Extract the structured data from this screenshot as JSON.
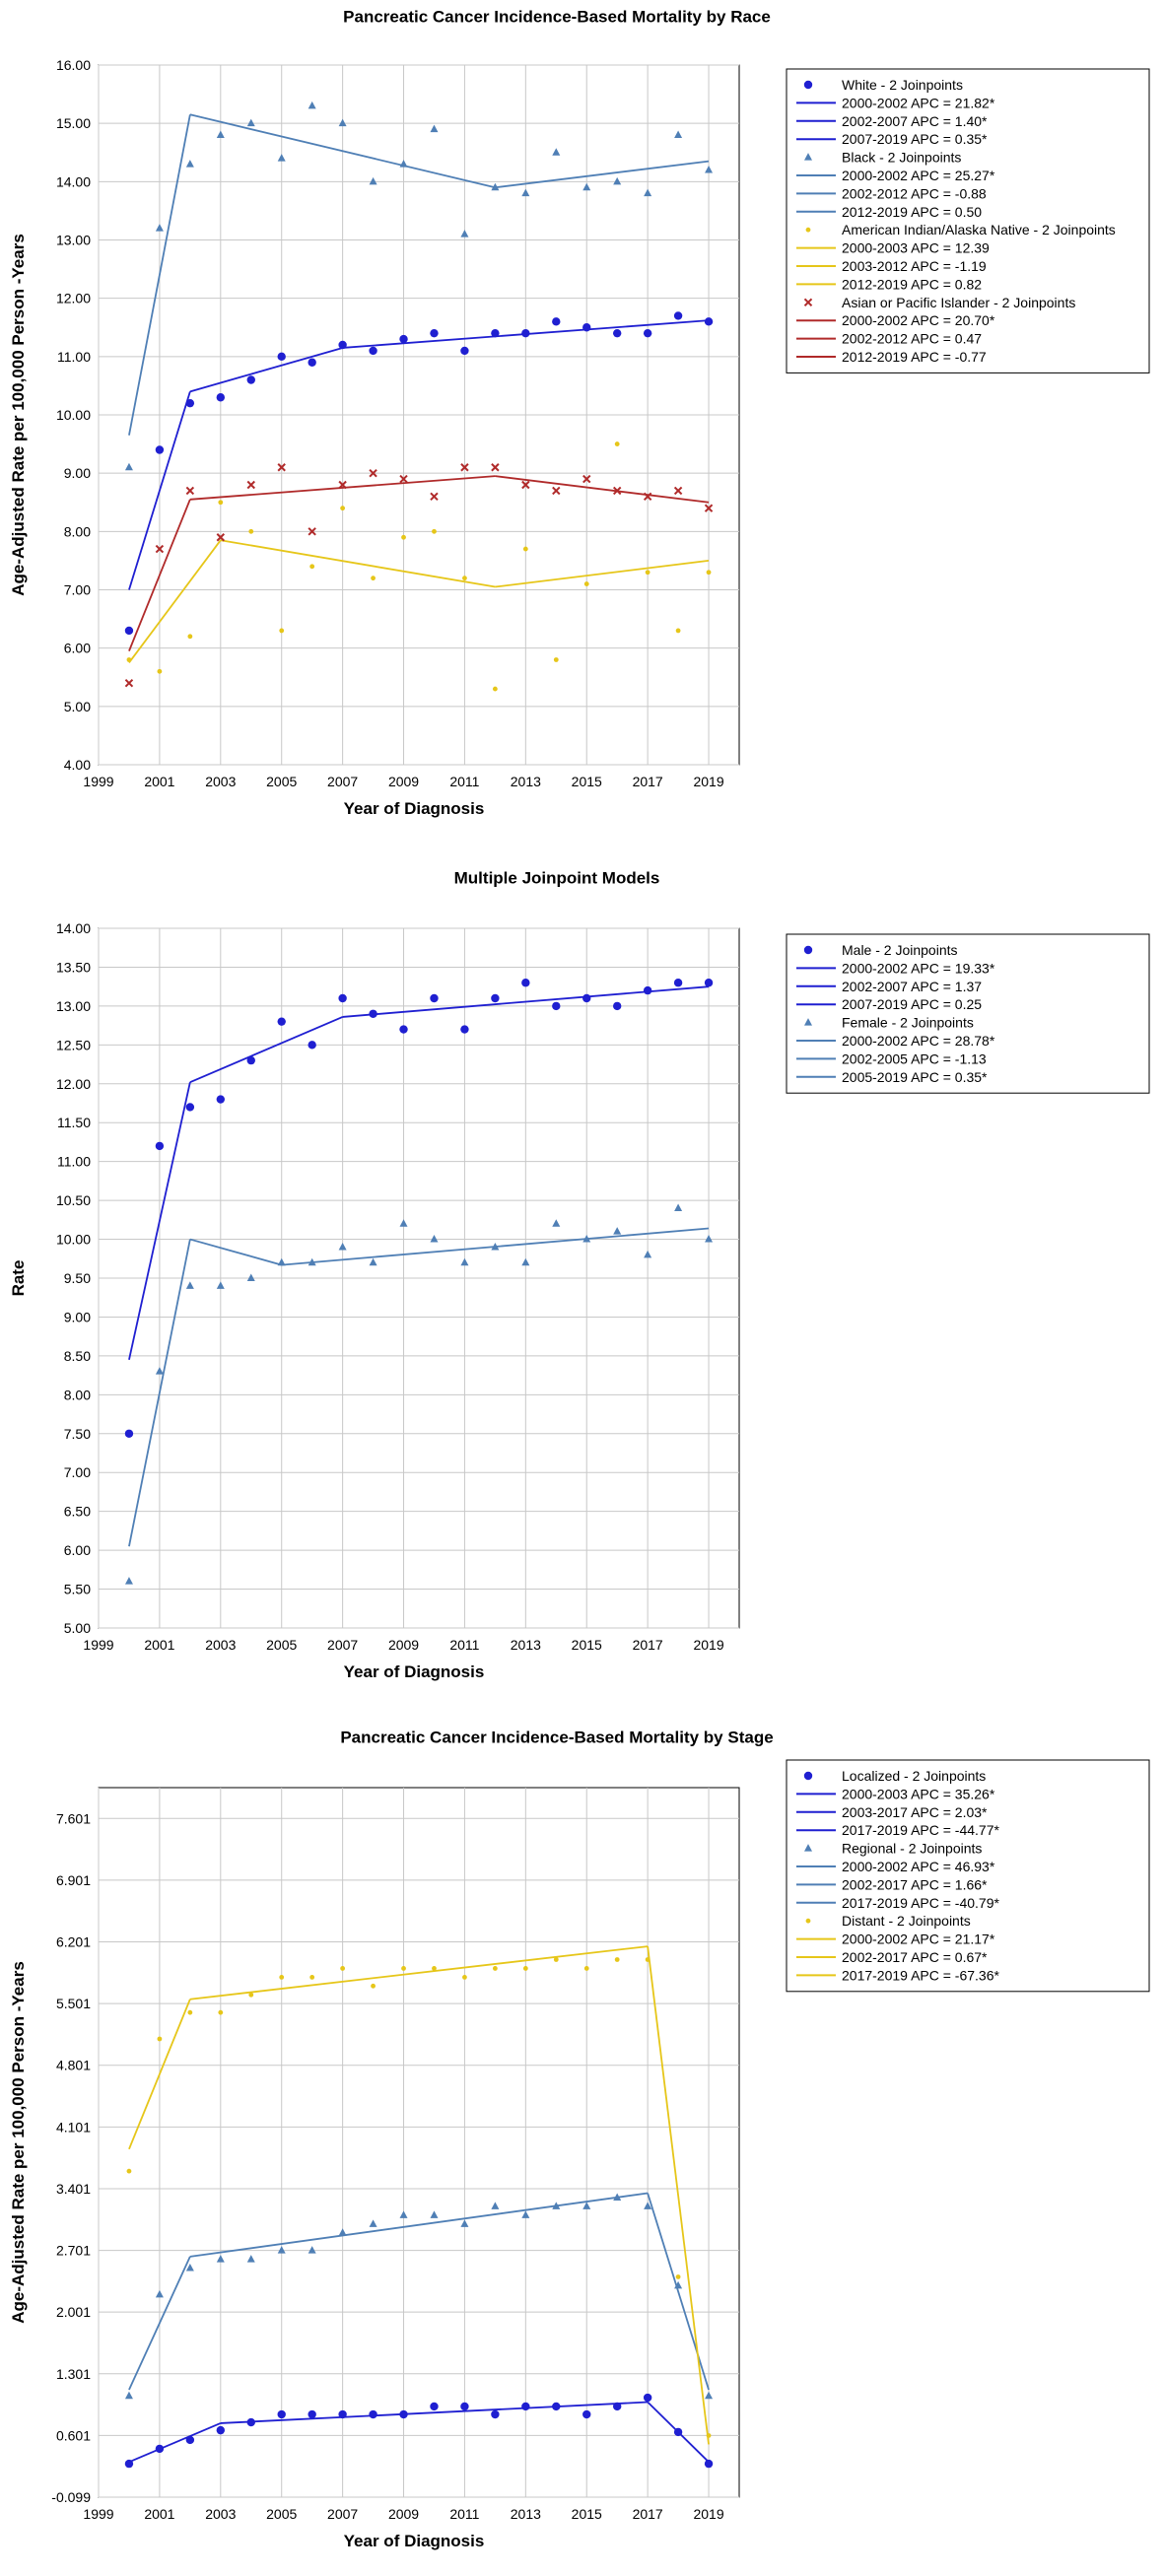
{
  "chart_data": [
    {
      "type": "line",
      "title": "Pancreatic Cancer Incidence-Based Mortality by Race",
      "xlabel": "Year of Diagnosis",
      "ylabel": "Age-Adjusted Rate per 100,000 Person -Years",
      "xlim": [
        1999,
        2020
      ],
      "ylim": [
        4.0,
        16.0
      ],
      "xticks": [
        1999,
        2001,
        2003,
        2005,
        2007,
        2009,
        2011,
        2013,
        2015,
        2017,
        2019
      ],
      "xtick_labels": [
        "1999",
        "2001",
        "2003",
        "2005",
        "2007",
        "2009",
        "2011",
        "2013",
        "2015",
        "2017",
        "2019"
      ],
      "yticks": [
        4.0,
        5.0,
        6.0,
        7.0,
        8.0,
        9.0,
        10.0,
        11.0,
        12.0,
        13.0,
        14.0,
        15.0,
        16.0
      ],
      "ytick_labels": [
        "4.00",
        "5.00",
        "6.00",
        "7.00",
        "8.00",
        "9.00",
        "10.00",
        "11.00",
        "12.00",
        "13.00",
        "14.00",
        "15.00",
        "16.00"
      ],
      "grid": true,
      "legend_position": "right",
      "series": [
        {
          "name": "White - 2 Joinpoints",
          "color": "#1f1fd1",
          "marker": "circle",
          "x": [
            2000,
            2001,
            2002,
            2003,
            2004,
            2005,
            2006,
            2007,
            2008,
            2009,
            2010,
            2011,
            2012,
            2013,
            2014,
            2015,
            2016,
            2017,
            2018,
            2019
          ],
          "y": [
            6.3,
            9.4,
            10.2,
            10.3,
            10.6,
            11.0,
            10.9,
            11.2,
            11.1,
            11.3,
            11.4,
            11.1,
            11.4,
            11.4,
            11.6,
            11.5,
            11.4,
            11.4,
            11.7,
            11.6
          ],
          "segments": [
            {
              "label": "2000-2002 APC = 21.82*",
              "x": [
                2000,
                2002
              ],
              "y": [
                7.0,
                10.4
              ]
            },
            {
              "label": "2002-2007 APC = 1.40*",
              "x": [
                2002,
                2007
              ],
              "y": [
                10.4,
                11.15
              ]
            },
            {
              "label": "2007-2019 APC = 0.35*",
              "x": [
                2007,
                2019
              ],
              "y": [
                11.15,
                11.62
              ]
            }
          ]
        },
        {
          "name": "Black - 2 Joinpoints",
          "color": "#4f7fb5",
          "marker": "triangle",
          "x": [
            2000,
            2001,
            2002,
            2003,
            2004,
            2005,
            2006,
            2007,
            2008,
            2009,
            2010,
            2011,
            2012,
            2013,
            2014,
            2015,
            2016,
            2017,
            2018,
            2019
          ],
          "y": [
            9.1,
            13.2,
            14.3,
            14.8,
            15.0,
            14.4,
            15.3,
            15.0,
            14.0,
            14.3,
            14.9,
            13.1,
            13.9,
            13.8,
            14.5,
            13.9,
            14.0,
            13.8,
            14.8,
            14.2
          ],
          "segments": [
            {
              "label": "2000-2002 APC = 25.27*",
              "x": [
                2000,
                2002
              ],
              "y": [
                9.65,
                15.15
              ]
            },
            {
              "label": "2002-2012 APC = -0.88",
              "x": [
                2002,
                2012
              ],
              "y": [
                15.15,
                13.9
              ]
            },
            {
              "label": "2012-2019 APC = 0.50",
              "x": [
                2012,
                2019
              ],
              "y": [
                13.9,
                14.35
              ]
            }
          ]
        },
        {
          "name": "American Indian/Alaska Native - 2 Joinpoints",
          "color": "#e6c619",
          "marker": "dot",
          "x": [
            2000,
            2001,
            2002,
            2003,
            2004,
            2005,
            2006,
            2007,
            2008,
            2009,
            2010,
            2011,
            2012,
            2013,
            2014,
            2015,
            2016,
            2017,
            2018,
            2019
          ],
          "y": [
            5.8,
            5.6,
            6.2,
            8.5,
            8.0,
            6.3,
            7.4,
            8.4,
            7.2,
            7.9,
            8.0,
            7.2,
            5.3,
            7.7,
            5.8,
            7.1,
            9.5,
            7.3,
            6.3,
            7.3
          ],
          "segments": [
            {
              "label": "2000-2003 APC = 12.39",
              "x": [
                2000,
                2003
              ],
              "y": [
                5.75,
                7.85
              ]
            },
            {
              "label": "2003-2012 APC = -1.19",
              "x": [
                2003,
                2012
              ],
              "y": [
                7.85,
                7.05
              ]
            },
            {
              "label": "2012-2019 APC = 0.82",
              "x": [
                2012,
                2019
              ],
              "y": [
                7.05,
                7.5
              ]
            }
          ]
        },
        {
          "name": "Asian or Pacific Islander - 2 Joinpoints",
          "color": "#b02a2a",
          "marker": "x",
          "x": [
            2000,
            2001,
            2002,
            2003,
            2004,
            2005,
            2006,
            2007,
            2008,
            2009,
            2010,
            2011,
            2012,
            2013,
            2014,
            2015,
            2016,
            2017,
            2018,
            2019
          ],
          "y": [
            5.4,
            7.7,
            8.7,
            7.9,
            8.8,
            9.1,
            8.0,
            8.8,
            9.0,
            8.9,
            8.6,
            9.1,
            9.1,
            8.8,
            8.7,
            8.9,
            8.7,
            8.6,
            8.7,
            8.4
          ],
          "segments": [
            {
              "label": "2000-2002 APC = 20.70*",
              "x": [
                2000,
                2002
              ],
              "y": [
                5.95,
                8.55
              ]
            },
            {
              "label": "2002-2012 APC = 0.47",
              "x": [
                2002,
                2012
              ],
              "y": [
                8.55,
                8.95
              ]
            },
            {
              "label": "2012-2019 APC = -0.77",
              "x": [
                2012,
                2019
              ],
              "y": [
                8.95,
                8.5
              ]
            }
          ]
        }
      ]
    },
    {
      "type": "line",
      "title": "Multiple Joinpoint Models",
      "xlabel": "Year of Diagnosis",
      "ylabel": "Rate",
      "xlim": [
        1999,
        2020
      ],
      "ylim": [
        5.0,
        14.0
      ],
      "xticks": [
        1999,
        2001,
        2003,
        2005,
        2007,
        2009,
        2011,
        2013,
        2015,
        2017,
        2019
      ],
      "xtick_labels": [
        "1999",
        "2001",
        "2003",
        "2005",
        "2007",
        "2009",
        "2011",
        "2013",
        "2015",
        "2017",
        "2019"
      ],
      "yticks": [
        5.0,
        5.5,
        6.0,
        6.5,
        7.0,
        7.5,
        8.0,
        8.5,
        9.0,
        9.5,
        10.0,
        10.5,
        11.0,
        11.5,
        12.0,
        12.5,
        13.0,
        13.5,
        14.0
      ],
      "ytick_labels": [
        "5.00",
        "5.50",
        "6.00",
        "6.50",
        "7.00",
        "7.50",
        "8.00",
        "8.50",
        "9.00",
        "9.50",
        "10.00",
        "10.50",
        "11.00",
        "11.50",
        "12.00",
        "12.50",
        "13.00",
        "13.50",
        "14.00"
      ],
      "grid": true,
      "legend_position": "right",
      "series": [
        {
          "name": "Male - 2 Joinpoints",
          "color": "#1f1fd1",
          "marker": "circle",
          "x": [
            2000,
            2001,
            2002,
            2003,
            2004,
            2005,
            2006,
            2007,
            2008,
            2009,
            2010,
            2011,
            2012,
            2013,
            2014,
            2015,
            2016,
            2017,
            2018,
            2019
          ],
          "y": [
            7.5,
            11.2,
            11.7,
            11.8,
            12.3,
            12.8,
            12.5,
            13.1,
            12.9,
            12.7,
            13.1,
            12.7,
            13.1,
            13.3,
            13.0,
            13.1,
            13.0,
            13.2,
            13.3,
            13.3
          ],
          "segments": [
            {
              "label": "2000-2002 APC = 19.33*",
              "x": [
                2000,
                2002
              ],
              "y": [
                8.45,
                12.02
              ]
            },
            {
              "label": "2002-2007 APC = 1.37",
              "x": [
                2002,
                2007
              ],
              "y": [
                12.02,
                12.86
              ]
            },
            {
              "label": "2007-2019 APC = 0.25",
              "x": [
                2007,
                2019
              ],
              "y": [
                12.86,
                13.25
              ]
            }
          ]
        },
        {
          "name": "Female - 2 Joinpoints",
          "color": "#4f7fb5",
          "marker": "triangle",
          "x": [
            2000,
            2001,
            2002,
            2003,
            2004,
            2005,
            2006,
            2007,
            2008,
            2009,
            2010,
            2011,
            2012,
            2013,
            2014,
            2015,
            2016,
            2017,
            2018,
            2019
          ],
          "y": [
            5.6,
            8.3,
            9.4,
            9.4,
            9.5,
            9.7,
            9.7,
            9.9,
            9.7,
            10.2,
            10.0,
            9.7,
            9.9,
            9.7,
            10.2,
            10.0,
            10.1,
            9.8,
            10.4,
            10.0
          ],
          "segments": [
            {
              "label": "2000-2002 APC = 28.78*",
              "x": [
                2000,
                2002
              ],
              "y": [
                6.05,
                10.0
              ]
            },
            {
              "label": "2002-2005 APC = -1.13",
              "x": [
                2002,
                2005
              ],
              "y": [
                10.0,
                9.67
              ]
            },
            {
              "label": "2005-2019 APC = 0.35*",
              "x": [
                2005,
                2019
              ],
              "y": [
                9.67,
                10.14
              ]
            }
          ]
        }
      ]
    },
    {
      "type": "line",
      "title": "Pancreatic Cancer Incidence-Based Mortality by Stage",
      "xlabel": "Year of Diagnosis",
      "ylabel": "Age-Adjusted Rate per 100,000 Person -Years",
      "xlim": [
        1999,
        2020
      ],
      "ylim": [
        -0.099,
        7.951
      ],
      "xticks": [
        1999,
        2001,
        2003,
        2005,
        2007,
        2009,
        2011,
        2013,
        2015,
        2017,
        2019
      ],
      "xtick_labels": [
        "1999",
        "2001",
        "2003",
        "2005",
        "2007",
        "2009",
        "2011",
        "2013",
        "2015",
        "2017",
        "2019"
      ],
      "yticks": [
        -0.099,
        0.601,
        1.301,
        2.001,
        2.701,
        3.401,
        4.101,
        4.801,
        5.501,
        6.201,
        6.901,
        7.601
      ],
      "ytick_labels": [
        "-0.099",
        "0.601",
        "1.301",
        "2.001",
        "2.701",
        "3.401",
        "4.101",
        "4.801",
        "5.501",
        "6.201",
        "6.901",
        "7.601"
      ],
      "grid": true,
      "legend_position": "right",
      "series": [
        {
          "name": "Localized - 2 Joinpoints",
          "color": "#1f1fd1",
          "marker": "circle",
          "x": [
            2000,
            2001,
            2002,
            2003,
            2004,
            2005,
            2006,
            2007,
            2008,
            2009,
            2010,
            2011,
            2012,
            2013,
            2014,
            2015,
            2016,
            2017,
            2018,
            2019
          ],
          "y": [
            0.28,
            0.45,
            0.55,
            0.66,
            0.75,
            0.84,
            0.84,
            0.84,
            0.84,
            0.84,
            0.93,
            0.93,
            0.84,
            0.93,
            0.93,
            0.84,
            0.93,
            1.03,
            0.64,
            0.28
          ],
          "segments": [
            {
              "label": "2000-2003 APC = 35.26*",
              "x": [
                2000,
                2003
              ],
              "y": [
                0.3,
                0.74
              ]
            },
            {
              "label": "2003-2017 APC =  2.03*",
              "x": [
                2003,
                2017
              ],
              "y": [
                0.74,
                0.98
              ]
            },
            {
              "label": "2017-2019 APC = -44.77*",
              "x": [
                2017,
                2019
              ],
              "y": [
                0.98,
                0.3
              ]
            }
          ]
        },
        {
          "name": "Regional - 2 Joinpoints",
          "color": "#4f7fb5",
          "marker": "triangle",
          "x": [
            2000,
            2001,
            2002,
            2003,
            2004,
            2005,
            2006,
            2007,
            2008,
            2009,
            2010,
            2011,
            2012,
            2013,
            2014,
            2015,
            2016,
            2017,
            2018,
            2019
          ],
          "y": [
            1.05,
            2.2,
            2.5,
            2.6,
            2.6,
            2.7,
            2.7,
            2.9,
            3.0,
            3.1,
            3.1,
            3.0,
            3.2,
            3.1,
            3.2,
            3.2,
            3.3,
            3.2,
            2.3,
            1.05
          ],
          "segments": [
            {
              "label": "2000-2002 APC = 46.93*",
              "x": [
                2000,
                2002
              ],
              "y": [
                1.12,
                2.63
              ]
            },
            {
              "label": "2002-2017 APC =  1.66*",
              "x": [
                2002,
                2017
              ],
              "y": [
                2.63,
                3.35
              ]
            },
            {
              "label": "2017-2019 APC = -40.79*",
              "x": [
                2017,
                2019
              ],
              "y": [
                3.35,
                1.12
              ]
            }
          ]
        },
        {
          "name": "Distant - 2 Joinpoints",
          "color": "#e6c619",
          "marker": "dot",
          "x": [
            2000,
            2001,
            2002,
            2003,
            2004,
            2005,
            2006,
            2007,
            2008,
            2009,
            2010,
            2011,
            2012,
            2013,
            2014,
            2015,
            2016,
            2017,
            2018,
            2019
          ],
          "y": [
            3.6,
            5.1,
            5.4,
            5.4,
            5.6,
            5.8,
            5.8,
            5.9,
            5.7,
            5.9,
            5.9,
            5.8,
            5.9,
            5.9,
            6.0,
            5.9,
            6.0,
            6.0,
            2.4,
            0.6
          ],
          "segments": [
            {
              "label": "2000-2002 APC = 21.17*",
              "x": [
                2000,
                2002
              ],
              "y": [
                3.85,
                5.55
              ]
            },
            {
              "label": "2002-2017 APC =  0.67*",
              "x": [
                2002,
                2017
              ],
              "y": [
                5.55,
                6.15
              ]
            },
            {
              "label": "2017-2019 APC = -67.36*",
              "x": [
                2017,
                2019
              ],
              "y": [
                6.15,
                0.5
              ]
            }
          ]
        }
      ]
    }
  ]
}
